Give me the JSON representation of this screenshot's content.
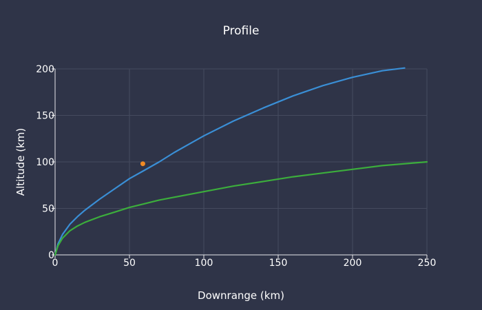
{
  "chart_data": {
    "type": "line",
    "title": "Profile",
    "xlabel": "Downrange (km)",
    "ylabel": "Altitude (km)",
    "xlim": [
      0,
      250
    ],
    "ylim": [
      0,
      200
    ],
    "xticks": [
      0,
      50,
      100,
      150,
      200,
      250
    ],
    "yticks": [
      0,
      50,
      100,
      150,
      200
    ],
    "grid": true,
    "legend": "none",
    "series": [
      {
        "color": "#3a8fd6",
        "x": [
          0,
          2,
          5,
          10,
          15,
          20,
          30,
          40,
          50,
          59,
          70,
          80,
          90,
          100,
          120,
          140,
          160,
          180,
          200,
          220,
          235
        ],
        "y": [
          0,
          12,
          22,
          33,
          41,
          48,
          60,
          71,
          82,
          90,
          100,
          110,
          119,
          128,
          144,
          158,
          171,
          182,
          191,
          198,
          201
        ]
      },
      {
        "color": "#3cae3c",
        "x": [
          0,
          2,
          5,
          10,
          15,
          20,
          30,
          40,
          50,
          60,
          70,
          80,
          100,
          120,
          140,
          160,
          180,
          200,
          220,
          250
        ],
        "y": [
          0,
          10,
          18,
          26,
          31,
          35,
          41,
          46,
          51,
          55,
          59,
          62,
          68,
          74,
          79,
          84,
          88,
          92,
          96,
          100
        ]
      }
    ],
    "points": [
      {
        "x": 59,
        "y": 98,
        "color": "#f08a24"
      }
    ]
  }
}
